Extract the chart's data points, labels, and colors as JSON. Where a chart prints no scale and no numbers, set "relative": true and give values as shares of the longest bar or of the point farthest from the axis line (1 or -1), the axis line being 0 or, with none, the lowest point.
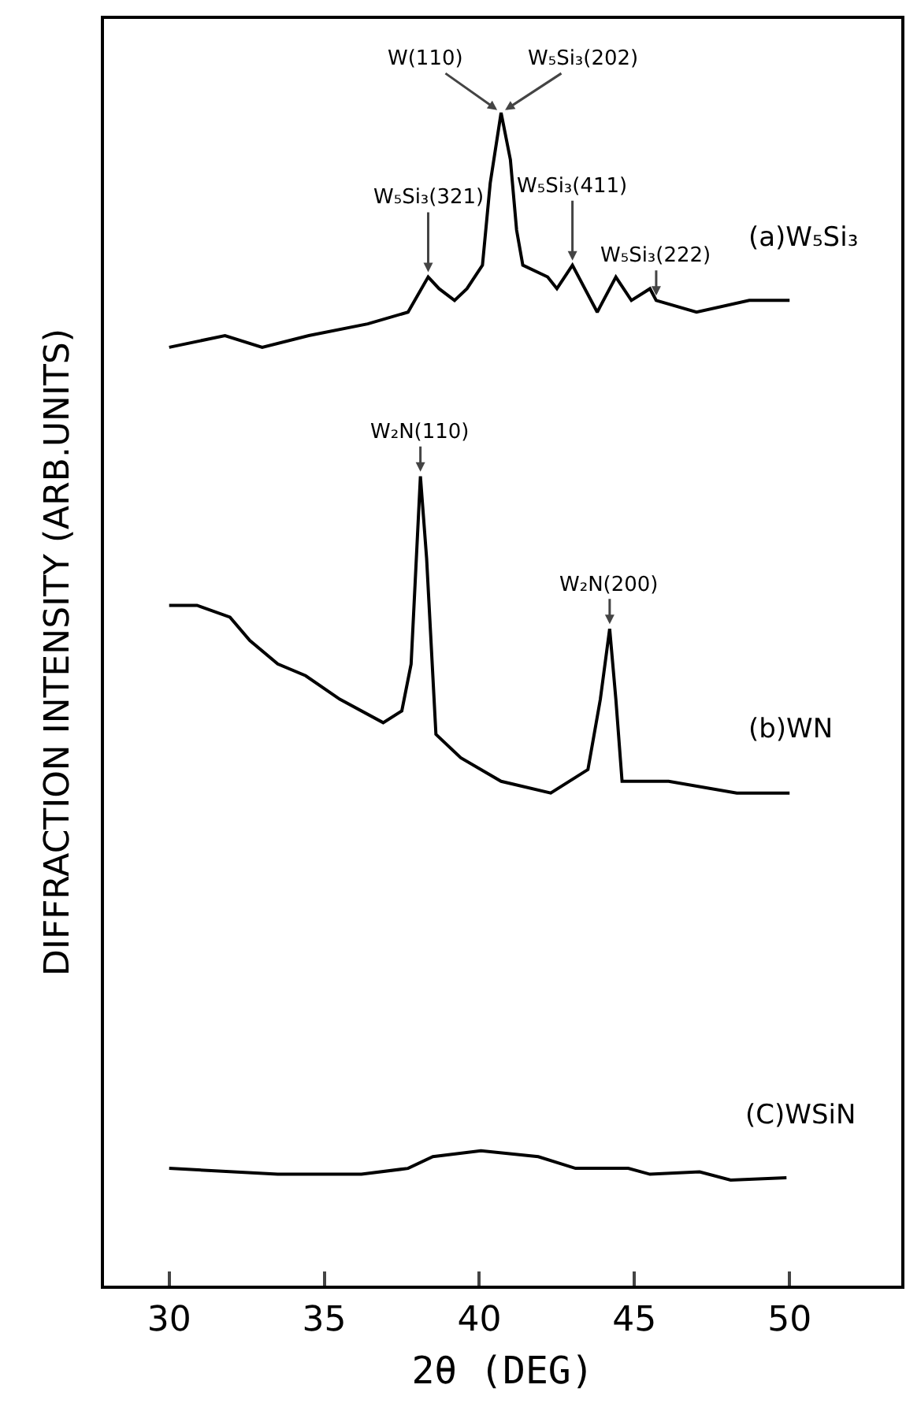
{
  "chart_data": {
    "type": "line",
    "relative": true,
    "xlabel": "2θ (DEG)",
    "ylabel": "DIFFRACTION INTENSITY (ARB.UNITS)",
    "xlim": [
      27.9,
      53.6
    ],
    "xticks": [
      30,
      35,
      40,
      45,
      50
    ],
    "grid": false,
    "legend": false,
    "marker": "none",
    "line_style": "solid",
    "series": [
      {
        "name": "(a)W₅Si₃",
        "color": "#000000",
        "x": [
          30.0,
          31.8,
          33.0,
          34.5,
          36.4,
          37.7,
          38.35,
          38.7,
          39.2,
          39.6,
          40.1,
          40.35,
          40.7,
          41.0,
          41.2,
          41.4,
          42.2,
          42.5,
          43.0,
          43.8,
          44.4,
          44.9,
          45.5,
          45.7,
          47.0,
          48.7,
          50.0
        ],
        "values": [
          0.8,
          0.81,
          0.8,
          0.81,
          0.82,
          0.83,
          0.86,
          0.85,
          0.84,
          0.85,
          0.87,
          0.94,
          1.0,
          0.96,
          0.9,
          0.87,
          0.86,
          0.85,
          0.87,
          0.83,
          0.86,
          0.84,
          0.85,
          0.84,
          0.83,
          0.84,
          0.84
        ]
      },
      {
        "name": "(b)WN",
        "color": "#000000",
        "x": [
          30.0,
          30.9,
          31.96,
          32.6,
          33.5,
          34.4,
          35.5,
          36.9,
          37.5,
          37.8,
          38.1,
          38.3,
          38.6,
          39.4,
          40.7,
          42.3,
          43.5,
          43.9,
          44.2,
          44.4,
          44.6,
          46.1,
          48.3,
          50.0
        ],
        "values": [
          0.58,
          0.58,
          0.57,
          0.55,
          0.53,
          0.52,
          0.5,
          0.48,
          0.49,
          0.53,
          0.69,
          0.62,
          0.47,
          0.45,
          0.43,
          0.42,
          0.44,
          0.5,
          0.56,
          0.5,
          0.43,
          0.43,
          0.42,
          0.42
        ]
      },
      {
        "name": "(C)WSiN",
        "color": "#000000",
        "x": [
          30.0,
          33.5,
          36.2,
          37.7,
          38.5,
          40.05,
          41.9,
          43.1,
          44.8,
          45.5,
          47.1,
          48.1,
          49.9
        ],
        "values": [
          0.1,
          0.095,
          0.095,
          0.1,
          0.11,
          0.115,
          0.11,
          0.1,
          0.1,
          0.095,
          0.097,
          0.09,
          0.092
        ]
      }
    ],
    "annotations": [
      {
        "text": "W₅Si₃(321)",
        "x": 38.35,
        "y": 0.86
      },
      {
        "text": "W(110)",
        "x": 40.7,
        "y": 1.0
      },
      {
        "text": "W₅Si₃(202)",
        "x": 40.7,
        "y": 1.0
      },
      {
        "text": "W₅Si₃(411)",
        "x": 43.0,
        "y": 0.87
      },
      {
        "text": "W₅Si₃(222)",
        "x": 45.7,
        "y": 0.84
      },
      {
        "text": "W₂N(110)",
        "x": 38.1,
        "y": 0.69
      },
      {
        "text": "W₂N(200)",
        "x": 44.2,
        "y": 0.56
      }
    ]
  }
}
